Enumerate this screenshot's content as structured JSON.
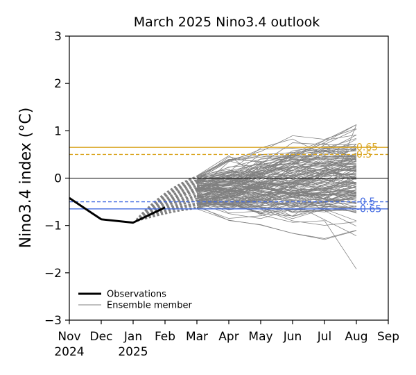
{
  "chart_data": {
    "type": "line",
    "title": "March 2025 Nino3.4 outlook",
    "xlabel": "",
    "ylabel": "Nino3.4 index (°C)",
    "ylim": [
      -3,
      3
    ],
    "xlim": [
      0,
      10
    ],
    "yticks": [
      {
        "value": 3,
        "label": "3"
      },
      {
        "value": 2,
        "label": "2"
      },
      {
        "value": 1,
        "label": "1"
      },
      {
        "value": 0,
        "label": "0"
      },
      {
        "value": -1,
        "label": "−1"
      },
      {
        "value": -2,
        "label": "−2"
      },
      {
        "value": -3,
        "label": "−3"
      }
    ],
    "xticks": [
      {
        "value": 0,
        "label": "Nov",
        "sublabel": "2024"
      },
      {
        "value": 1,
        "label": "Dec",
        "sublabel": ""
      },
      {
        "value": 2,
        "label": "Jan",
        "sublabel": "2025"
      },
      {
        "value": 3,
        "label": "Feb",
        "sublabel": ""
      },
      {
        "value": 4,
        "label": "Mar",
        "sublabel": ""
      },
      {
        "value": 5,
        "label": "Apr",
        "sublabel": ""
      },
      {
        "value": 6,
        "label": "May",
        "sublabel": ""
      },
      {
        "value": 7,
        "label": "Jun",
        "sublabel": ""
      },
      {
        "value": 8,
        "label": "Jul",
        "sublabel": ""
      },
      {
        "value": 9,
        "label": "Aug",
        "sublabel": ""
      },
      {
        "value": 10,
        "label": "Sep",
        "sublabel": ""
      }
    ],
    "observations": {
      "name": "Observations",
      "color": "#000000",
      "x": [
        0,
        1,
        2,
        3
      ],
      "y": [
        -0.42,
        -0.87,
        -0.94,
        -0.62
      ]
    },
    "ensemble": {
      "name": "Ensemble member",
      "color": "#808080",
      "count": 150,
      "x": [
        4,
        5,
        6,
        7,
        8,
        9
      ],
      "start_range": [
        -0.65,
        0.05
      ],
      "end_range": [
        -1.92,
        1.13
      ],
      "spin_up_from": {
        "x": 2,
        "y": -0.94
      }
    },
    "reference_lines": [
      {
        "value": 0.65,
        "label": "0.65",
        "color": "#DAA520",
        "style": "solid"
      },
      {
        "value": 0.5,
        "label": "0.5",
        "color": "#DAA520",
        "style": "dashed"
      },
      {
        "value": 0,
        "label": "",
        "color": "#000000",
        "style": "solid"
      },
      {
        "value": -0.5,
        "label": "-0.5",
        "color": "#4169E1",
        "style": "dashed"
      },
      {
        "value": -0.65,
        "label": "-0.65",
        "color": "#4169E1",
        "style": "solid"
      }
    ],
    "legend": {
      "position": "bottom-left"
    }
  }
}
